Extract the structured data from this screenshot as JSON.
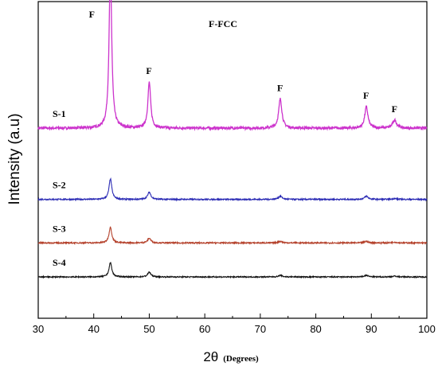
{
  "chart_data": {
    "type": "line",
    "xlabel": "2θ",
    "xlabel_unit": "(Degrees)",
    "ylabel": "Intensity (a.u)",
    "xlim": [
      30,
      100
    ],
    "xticks": [
      30,
      40,
      50,
      60,
      70,
      80,
      90,
      100
    ],
    "yticks_visible": false,
    "grid": false,
    "legend_text": "F-FCC",
    "peak_label": "F",
    "peaks": [
      43.0,
      50.0,
      73.6,
      89.1,
      94.2
    ],
    "series": [
      {
        "name": "S-1",
        "color": "#cc33cc",
        "baseline": 200,
        "noise": 1.6,
        "peak_heights": [
          205,
          58,
          37,
          27,
          10
        ],
        "peak_widths": [
          0.28,
          0.3,
          0.35,
          0.35,
          0.45
        ]
      },
      {
        "name": "S-2",
        "color": "#2a2ab4",
        "baseline": 110,
        "noise": 0.8,
        "peak_heights": [
          26,
          9,
          4,
          4,
          1
        ],
        "peak_widths": [
          0.3,
          0.35,
          0.4,
          0.4,
          0.5
        ]
      },
      {
        "name": "S-3",
        "color": "#b4402a",
        "baseline": 55,
        "noise": 0.8,
        "peak_heights": [
          20,
          6,
          2,
          2,
          1
        ],
        "peak_widths": [
          0.3,
          0.35,
          0.4,
          0.4,
          0.5
        ]
      },
      {
        "name": "S-4",
        "color": "#111111",
        "baseline": 12,
        "noise": 0.7,
        "peak_heights": [
          18,
          6,
          2,
          2,
          1
        ],
        "peak_widths": [
          0.3,
          0.35,
          0.4,
          0.4,
          0.5
        ]
      }
    ],
    "peak_annotations": [
      {
        "x": 43.0,
        "series": "S-1",
        "text": "F"
      },
      {
        "x": 50.0,
        "series": "S-1",
        "text": "F"
      },
      {
        "x": 73.6,
        "series": "S-1",
        "text": "F"
      },
      {
        "x": 89.1,
        "series": "S-1",
        "text": "F"
      },
      {
        "x": 94.2,
        "series": "S-1",
        "text": "F"
      }
    ]
  }
}
